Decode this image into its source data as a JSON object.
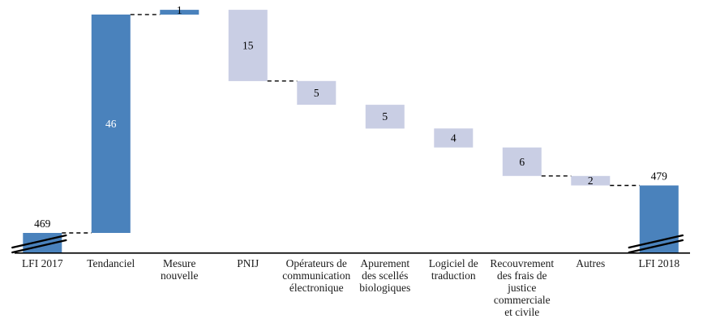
{
  "chart_data": {
    "type": "bar",
    "subtype": "waterfall",
    "title": "",
    "xlabel": "",
    "ylabel": "",
    "grid": false,
    "legend": "none",
    "axis_break_on_absolute_bars": true,
    "colors": {
      "positive_bar": "#4a82bc",
      "negative_bar": "#c9cee4",
      "axis_line": "#000000",
      "connector_line": "#000000",
      "value_label_dark": "#000000",
      "value_label_light": "#ffffff",
      "category_label": "#1a1a1a"
    },
    "steps": [
      {
        "category": "LFI 2017",
        "label_lines": [
          "LFI 2017"
        ],
        "kind": "absolute",
        "value": 469,
        "value_label": "469",
        "value_label_pos": "above",
        "value_label_color": "dark",
        "broken_axis": true
      },
      {
        "category": "Tendanciel",
        "label_lines": [
          "Tendanciel"
        ],
        "kind": "increase",
        "value": 46,
        "value_label": "46",
        "value_label_pos": "inside",
        "value_label_color": "light",
        "broken_axis": false
      },
      {
        "category": "Mesure nouvelle",
        "label_lines": [
          "Mesure",
          "nouvelle"
        ],
        "kind": "increase",
        "value": 1,
        "value_label": "1",
        "value_label_pos": "top",
        "value_label_color": "dark",
        "broken_axis": false
      },
      {
        "category": "PNIJ",
        "label_lines": [
          "PNIJ"
        ],
        "kind": "decrease",
        "value": 15,
        "value_label": "15",
        "value_label_pos": "inside",
        "value_label_color": "dark",
        "broken_axis": false
      },
      {
        "category": "Opérateurs de communication électronique",
        "label_lines": [
          "Opérateurs de",
          "communication",
          "électronique"
        ],
        "kind": "decrease",
        "value": 5,
        "value_label": "5",
        "value_label_pos": "inside",
        "value_label_color": "dark",
        "broken_axis": false
      },
      {
        "category": "Apurement des scellés biologiques",
        "label_lines": [
          "Apurement",
          "des scellés",
          "biologiques"
        ],
        "kind": "decrease",
        "value": 5,
        "value_label": "5",
        "value_label_pos": "inside",
        "value_label_color": "dark",
        "broken_axis": false
      },
      {
        "category": "Logiciel de traduction",
        "label_lines": [
          "Logiciel de",
          "traduction"
        ],
        "kind": "decrease",
        "value": 4,
        "value_label": "4",
        "value_label_pos": "inside",
        "value_label_color": "dark",
        "broken_axis": false
      },
      {
        "category": "Recouvrement des frais de justice commerciale et civile",
        "label_lines": [
          "Recouvrement",
          "des frais de",
          "justice",
          "commerciale",
          "et civile"
        ],
        "kind": "decrease",
        "value": 6,
        "value_label": "6",
        "value_label_pos": "inside",
        "value_label_color": "dark",
        "broken_axis": false
      },
      {
        "category": "Autres",
        "label_lines": [
          "Autres"
        ],
        "kind": "decrease",
        "value": 2,
        "value_label": "2",
        "value_label_pos": "inside",
        "value_label_color": "dark",
        "broken_axis": false
      },
      {
        "category": "LFI 2018",
        "label_lines": [
          "LFI 2018"
        ],
        "kind": "absolute",
        "value": 479,
        "value_label": "479",
        "value_label_pos": "above",
        "value_label_color": "dark",
        "broken_axis": true
      }
    ],
    "connectors_after_step_index": [
      0,
      1,
      3,
      7,
      8
    ],
    "derived_levels": [
      469,
      515,
      516,
      501,
      496,
      491,
      487,
      481,
      479,
      479
    ]
  }
}
